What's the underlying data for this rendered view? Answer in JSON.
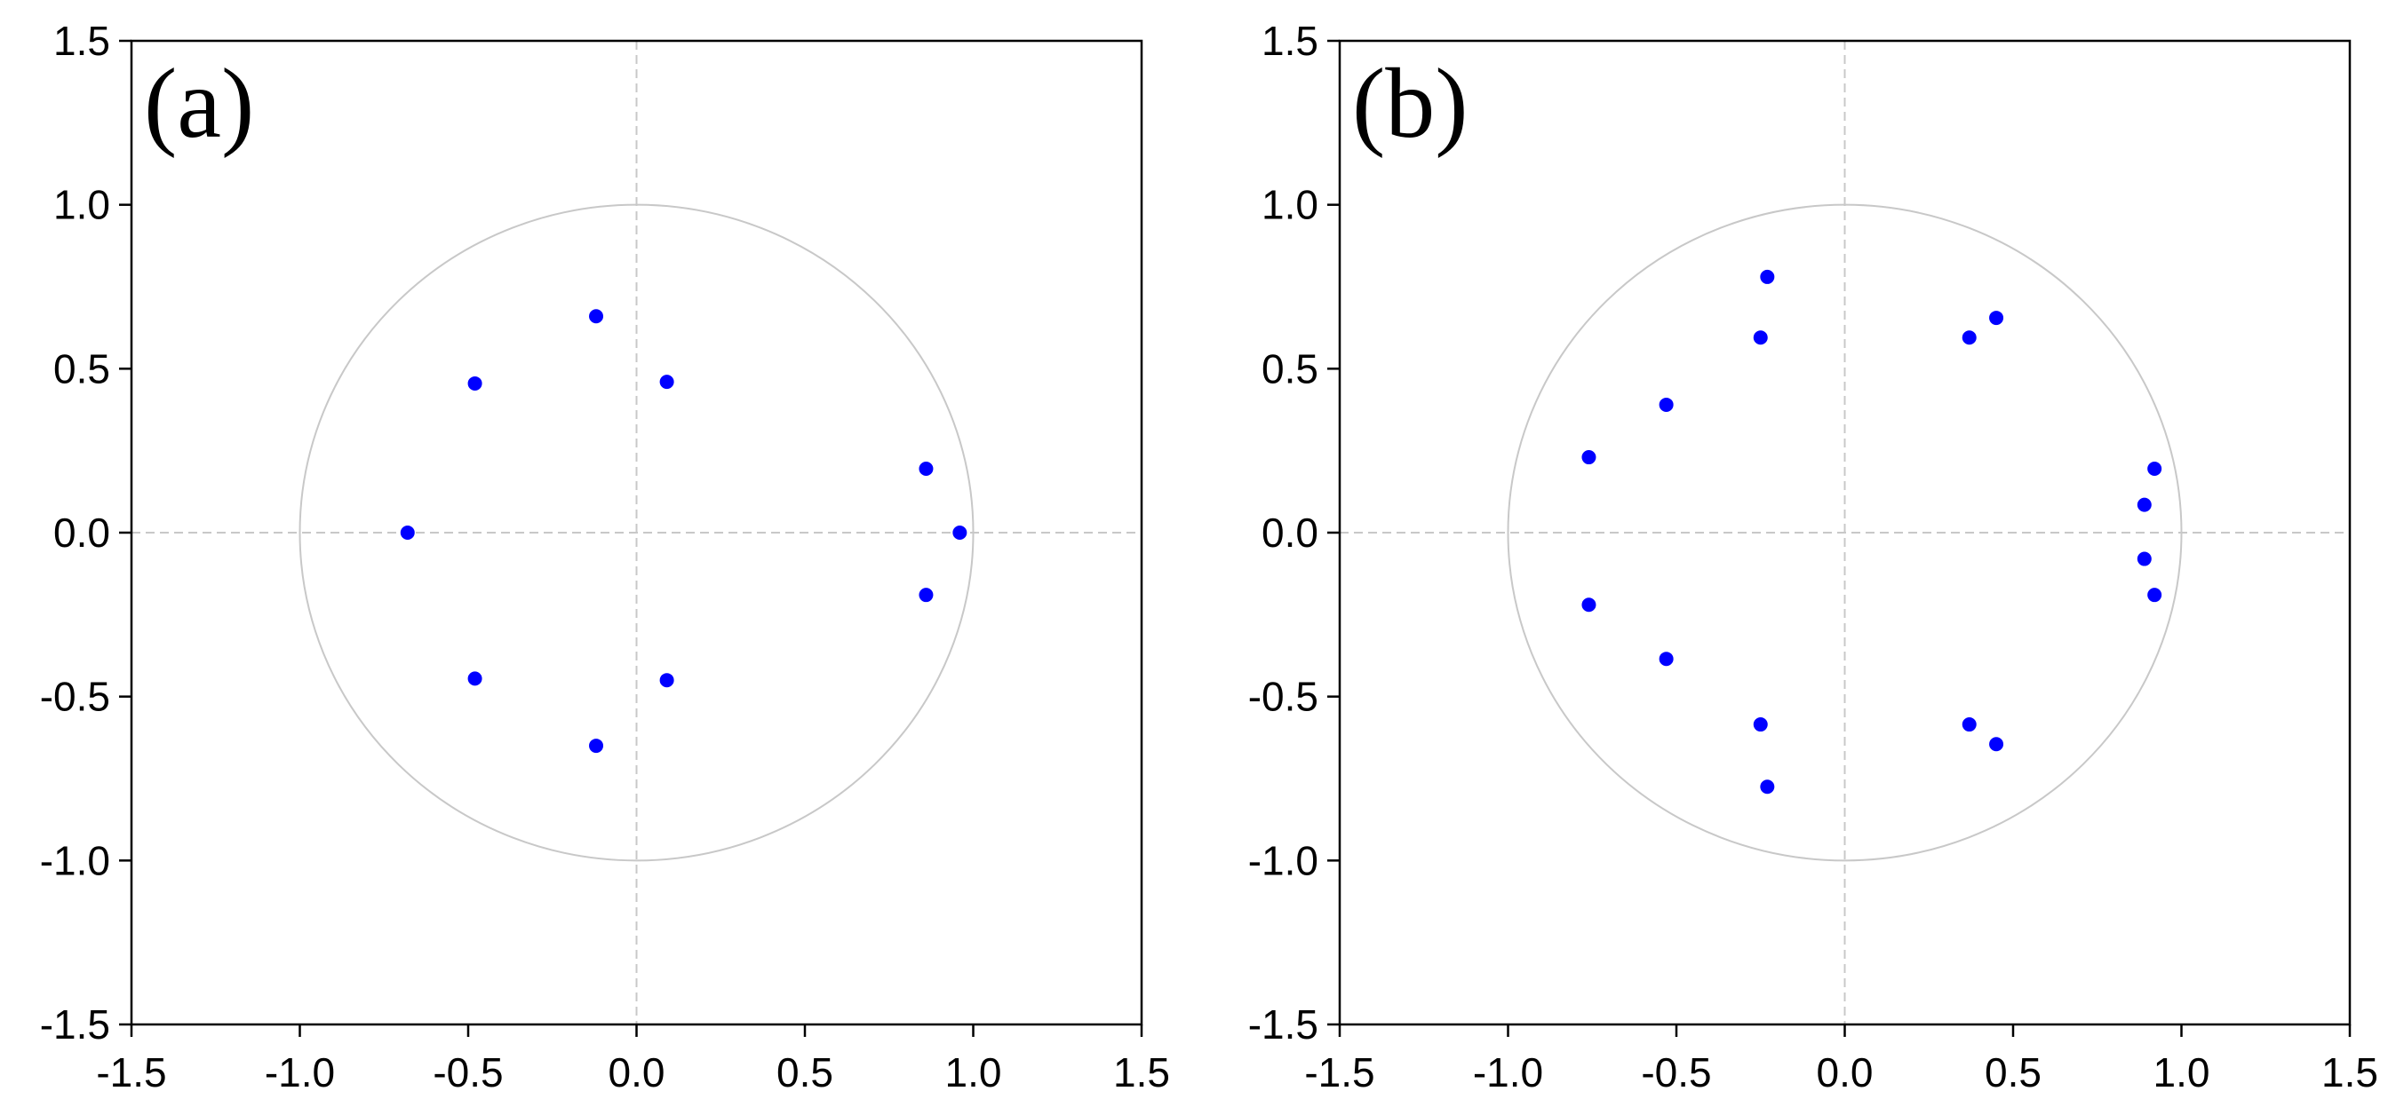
{
  "chart_data": [
    {
      "type": "scatter",
      "panel_label": "(a)",
      "title": "",
      "xlabel": "",
      "ylabel": "",
      "xlim": [
        -1.5,
        1.5
      ],
      "ylim": [
        -1.5,
        1.5
      ],
      "xticks": [
        "-1.5",
        "-1.0",
        "-0.5",
        "0.0",
        "0.5",
        "1.0",
        "1.5"
      ],
      "yticks": [
        "1.5",
        "1.0",
        "0.5",
        "0.0",
        "-0.5",
        "-1.0",
        "-1.5"
      ],
      "grid": false,
      "reference_lines": "x=0 and y=0, dashed",
      "unit_circle": true,
      "point_color": "#0000ff",
      "points": [
        {
          "x": -0.12,
          "y": 0.66
        },
        {
          "x": 0.09,
          "y": 0.46
        },
        {
          "x": -0.48,
          "y": 0.455
        },
        {
          "x": 0.86,
          "y": 0.195
        },
        {
          "x": -0.68,
          "y": 0.0
        },
        {
          "x": 0.96,
          "y": 0.0
        },
        {
          "x": 0.86,
          "y": -0.19
        },
        {
          "x": -0.48,
          "y": -0.445
        },
        {
          "x": 0.09,
          "y": -0.45
        },
        {
          "x": -0.12,
          "y": -0.65
        }
      ]
    },
    {
      "type": "scatter",
      "panel_label": "(b)",
      "title": "",
      "xlabel": "",
      "ylabel": "",
      "xlim": [
        -1.5,
        1.5
      ],
      "ylim": [
        -1.5,
        1.5
      ],
      "xticks": [
        "-1.5",
        "-1.0",
        "-0.5",
        "0.0",
        "0.5",
        "1.0",
        "1.5"
      ],
      "yticks": [
        "1.5",
        "1.0",
        "0.5",
        "0.0",
        "-0.5",
        "-1.0",
        "-1.5"
      ],
      "grid": false,
      "reference_lines": "x=0 and y=0, dashed",
      "unit_circle": true,
      "point_color": "#0000ff",
      "points": [
        {
          "x": -0.23,
          "y": 0.78
        },
        {
          "x": 0.45,
          "y": 0.655
        },
        {
          "x": -0.25,
          "y": 0.595
        },
        {
          "x": 0.37,
          "y": 0.595
        },
        {
          "x": -0.53,
          "y": 0.39
        },
        {
          "x": -0.76,
          "y": 0.23
        },
        {
          "x": 0.92,
          "y": 0.195
        },
        {
          "x": 0.89,
          "y": 0.085
        },
        {
          "x": 0.89,
          "y": -0.08
        },
        {
          "x": 0.92,
          "y": -0.19
        },
        {
          "x": -0.76,
          "y": -0.22
        },
        {
          "x": -0.53,
          "y": -0.385
        },
        {
          "x": -0.25,
          "y": -0.585
        },
        {
          "x": 0.37,
          "y": -0.585
        },
        {
          "x": 0.45,
          "y": -0.645
        },
        {
          "x": -0.23,
          "y": -0.775
        }
      ]
    }
  ]
}
